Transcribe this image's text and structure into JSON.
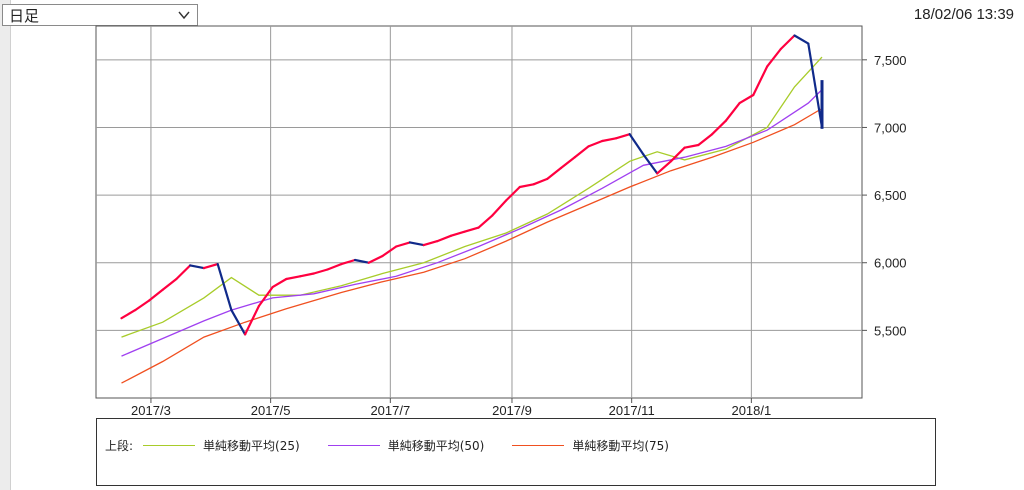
{
  "period_select": {
    "value": "日足"
  },
  "timestamp": "18/02/06 13:39",
  "legend": {
    "title": "上段:",
    "items": [
      {
        "label": "単純移動平均(25)",
        "color": "#a8cc2a"
      },
      {
        "label": "単純移動平均(50)",
        "color": "#a040f0"
      },
      {
        "label": "単純移動平均(75)",
        "color": "#f05020"
      }
    ]
  },
  "colors": {
    "up": "#ff0040",
    "down": "#102a8a",
    "grid": "#9a9a9a"
  },
  "chart_data": {
    "type": "line",
    "title": "",
    "x_ticks": [
      "2017/3",
      "2017/5",
      "2017/7",
      "2017/9",
      "2017/11",
      "2018/1"
    ],
    "y_ticks": [
      "5,500",
      "6,000",
      "6,500",
      "7,000",
      "7,500"
    ],
    "ylim": [
      5000,
      7750
    ],
    "x_range": [
      "2017-02-01",
      "2018-02-06"
    ],
    "price_series": {
      "name": "",
      "dates": [
        "2017-02-14",
        "2017-02-21",
        "2017-02-28",
        "2017-03-07",
        "2017-03-14",
        "2017-03-21",
        "2017-03-28",
        "2017-04-04",
        "2017-04-11",
        "2017-04-18",
        "2017-04-25",
        "2017-05-02",
        "2017-05-09",
        "2017-05-16",
        "2017-05-23",
        "2017-05-30",
        "2017-06-06",
        "2017-06-13",
        "2017-06-20",
        "2017-06-27",
        "2017-07-04",
        "2017-07-11",
        "2017-07-18",
        "2017-07-25",
        "2017-08-01",
        "2017-08-08",
        "2017-08-15",
        "2017-08-22",
        "2017-08-29",
        "2017-09-05",
        "2017-09-12",
        "2017-09-19",
        "2017-09-26",
        "2017-10-03",
        "2017-10-10",
        "2017-10-17",
        "2017-10-24",
        "2017-10-31",
        "2017-11-07",
        "2017-11-14",
        "2017-11-21",
        "2017-11-28",
        "2017-12-05",
        "2017-12-12",
        "2017-12-19",
        "2017-12-26",
        "2018-01-02",
        "2018-01-09",
        "2018-01-16",
        "2018-01-23",
        "2018-01-30",
        "2018-02-06"
      ],
      "values": [
        5590,
        5650,
        5720,
        5800,
        5880,
        5980,
        5960,
        5990,
        5650,
        5470,
        5680,
        5820,
        5880,
        5900,
        5920,
        5950,
        5990,
        6020,
        6000,
        6050,
        6120,
        6150,
        6130,
        6160,
        6200,
        6230,
        6260,
        6350,
        6460,
        6560,
        6580,
        6620,
        6700,
        6780,
        6860,
        6900,
        6920,
        6950,
        6800,
        6660,
        6750,
        6850,
        6870,
        6950,
        7050,
        7180,
        7240,
        7450,
        7580,
        7680,
        7620,
        7000
      ]
    },
    "series": [
      {
        "name": "単純移動平均(25)",
        "dates": [
          "2017-02-14",
          "2017-03-07",
          "2017-03-28",
          "2017-04-11",
          "2017-04-25",
          "2017-05-16",
          "2017-06-06",
          "2017-06-27",
          "2017-07-18",
          "2017-08-08",
          "2017-08-29",
          "2017-09-19",
          "2017-10-10",
          "2017-10-31",
          "2017-11-14",
          "2017-11-28",
          "2017-12-19",
          "2018-01-09",
          "2018-01-23",
          "2018-02-06"
        ],
        "values": [
          5450,
          5560,
          5740,
          5890,
          5760,
          5760,
          5830,
          5920,
          6000,
          6120,
          6220,
          6360,
          6550,
          6750,
          6820,
          6760,
          6840,
          7000,
          7300,
          7520
        ]
      },
      {
        "name": "単純移動平均(50)",
        "dates": [
          "2017-02-14",
          "2017-03-07",
          "2017-03-28",
          "2017-04-11",
          "2017-05-02",
          "2017-05-23",
          "2017-06-13",
          "2017-07-04",
          "2017-07-25",
          "2017-08-15",
          "2017-09-05",
          "2017-09-26",
          "2017-10-17",
          "2017-11-07",
          "2017-11-28",
          "2017-12-19",
          "2018-01-09",
          "2018-01-30",
          "2018-02-06"
        ],
        "values": [
          5310,
          5440,
          5570,
          5650,
          5740,
          5770,
          5840,
          5900,
          6000,
          6120,
          6250,
          6390,
          6550,
          6720,
          6780,
          6860,
          6980,
          7180,
          7280
        ]
      },
      {
        "name": "単純移動平均(75)",
        "dates": [
          "2017-02-14",
          "2017-03-07",
          "2017-03-28",
          "2017-04-18",
          "2017-05-09",
          "2017-06-06",
          "2017-06-27",
          "2017-07-18",
          "2017-08-08",
          "2017-08-29",
          "2017-09-19",
          "2017-10-10",
          "2017-10-31",
          "2017-11-21",
          "2017-12-12",
          "2018-01-02",
          "2018-01-23",
          "2018-02-06"
        ],
        "values": [
          5110,
          5270,
          5450,
          5560,
          5660,
          5780,
          5860,
          5930,
          6030,
          6160,
          6300,
          6430,
          6560,
          6680,
          6780,
          6890,
          7020,
          7140
        ]
      }
    ]
  }
}
